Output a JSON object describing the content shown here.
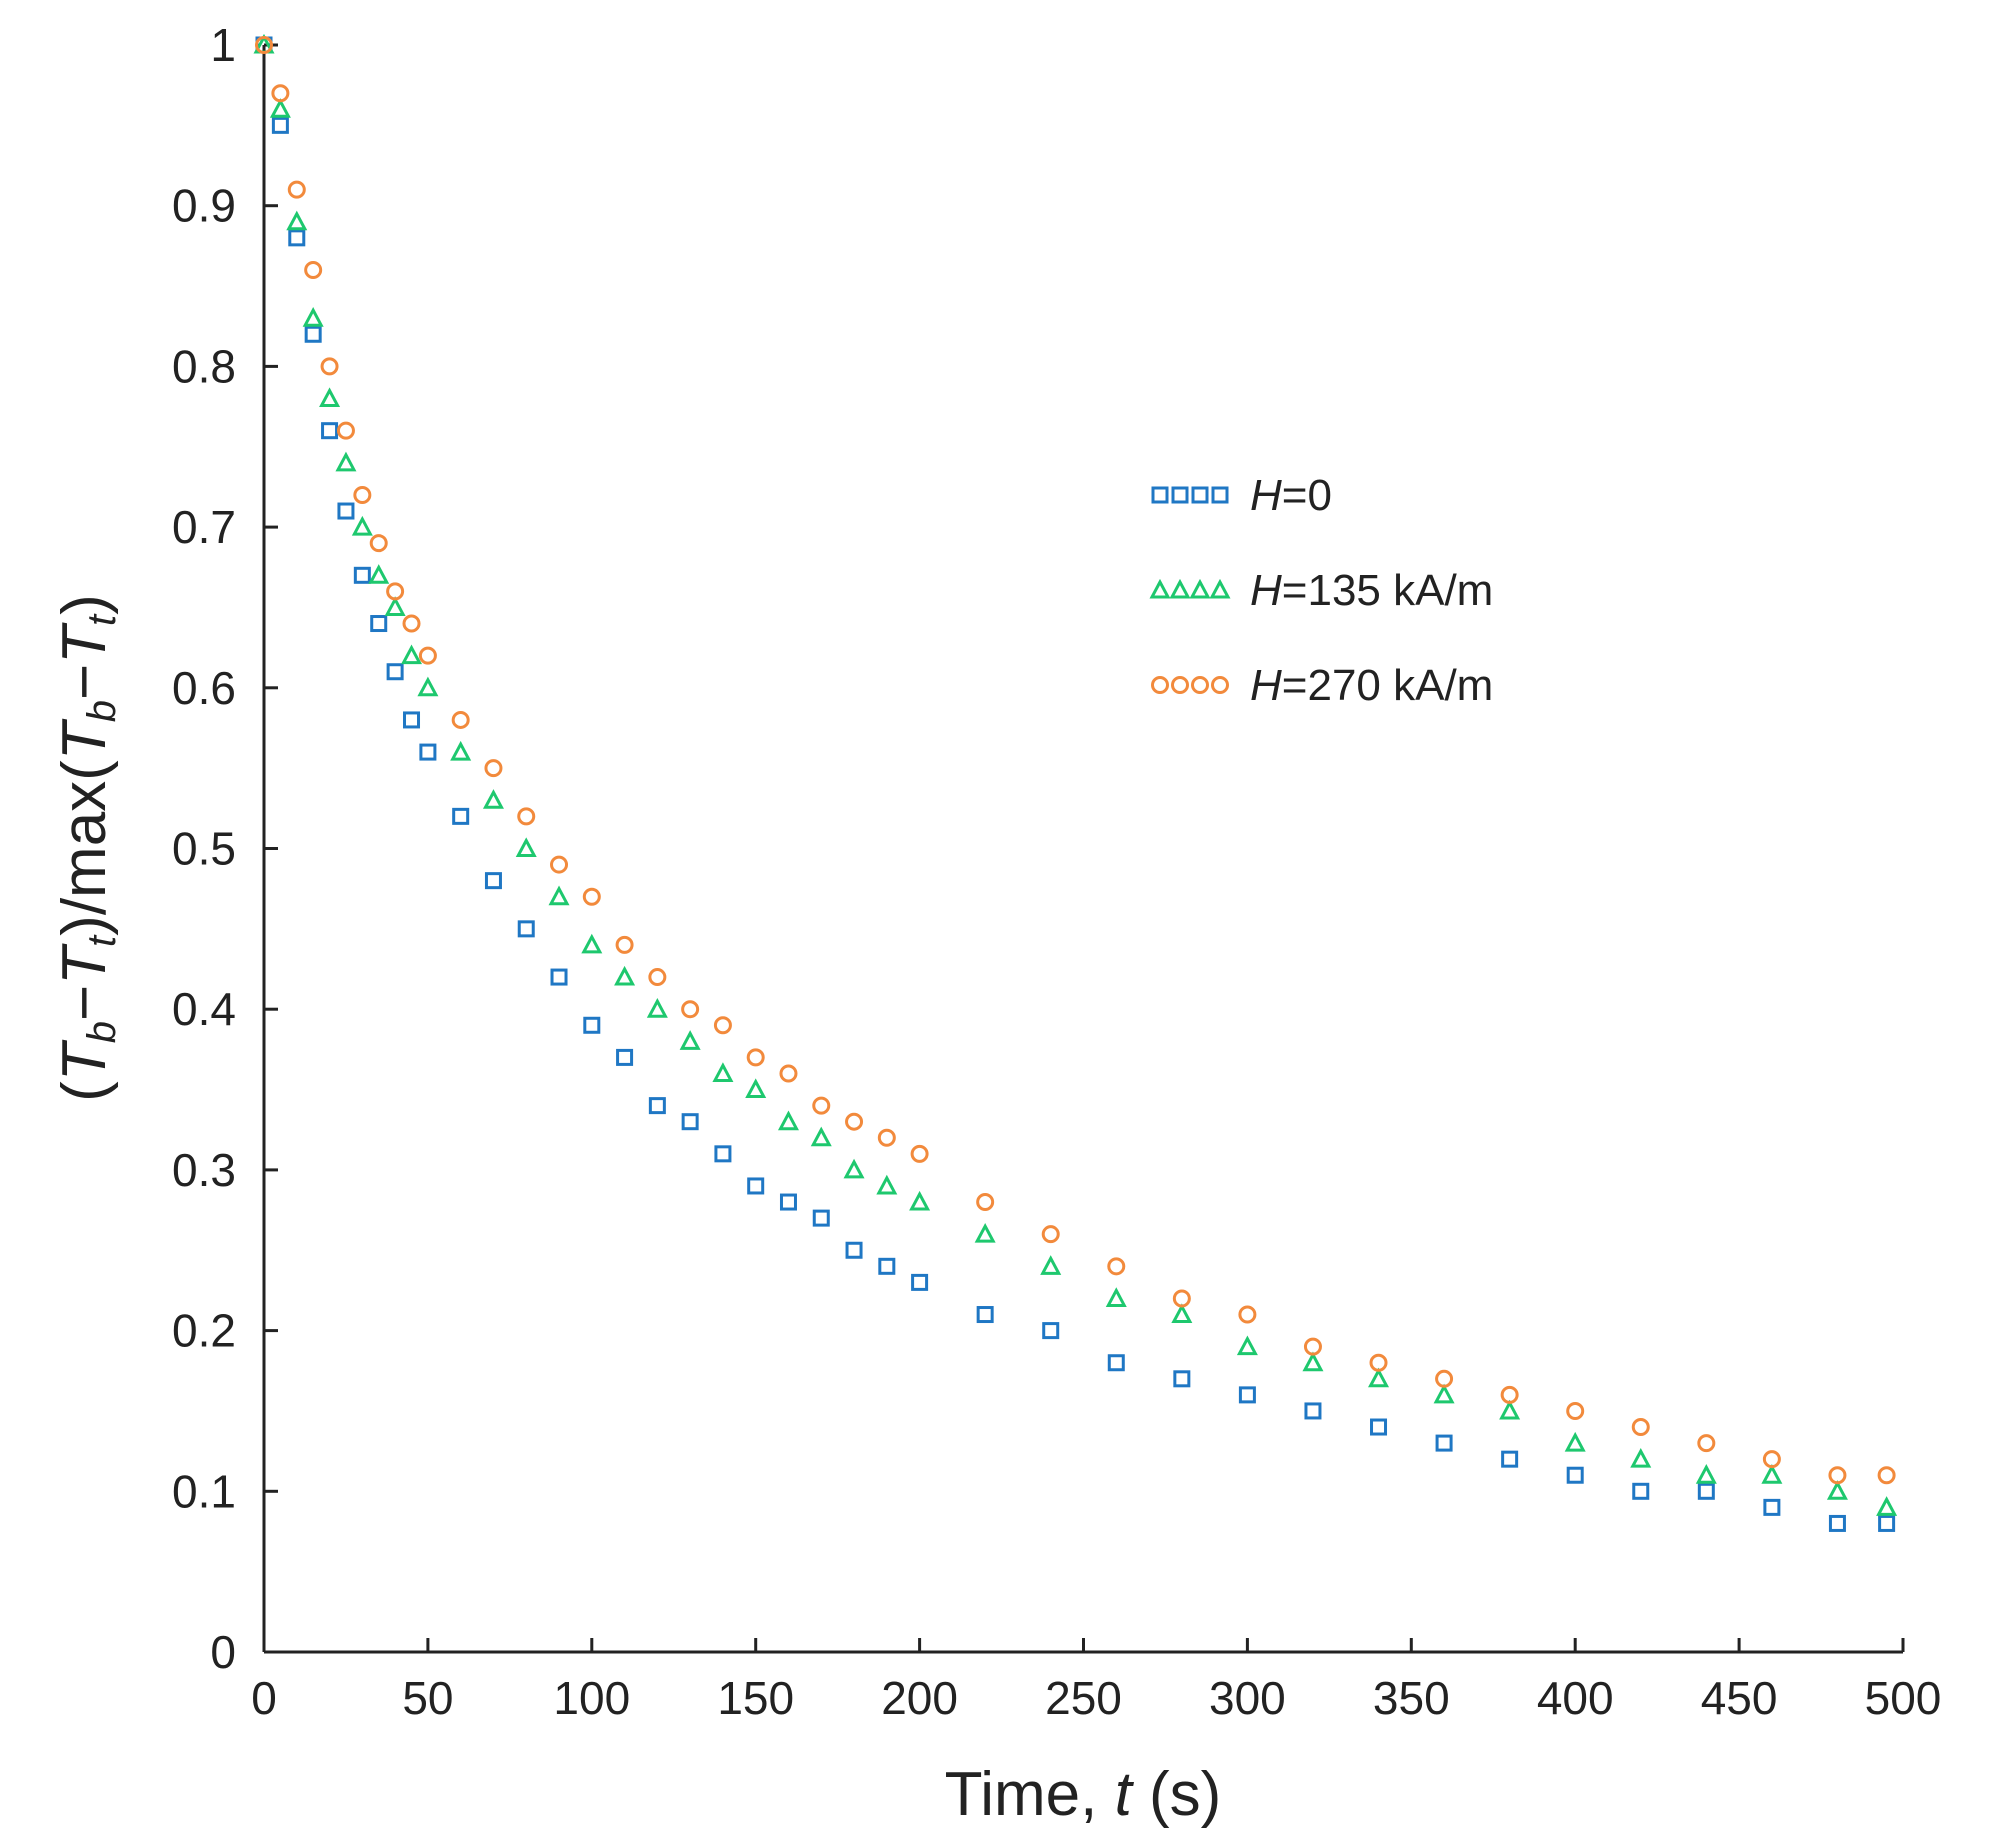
{
  "chart_data": {
    "type": "scatter",
    "title": "",
    "xlabel": {
      "prefix": "Time, ",
      "var": "t",
      "suffix": " (s)"
    },
    "ylabel": {
      "p1": "(",
      "T1": "T",
      "s1": "b",
      "m1": "−",
      "T2": "T",
      "s2": "t",
      "mid": ")/max(",
      "T3": "T",
      "s3": "b",
      "m2": "−",
      "T4": "T",
      "s4": "t",
      "end": ")"
    },
    "xlim": [
      0,
      500
    ],
    "ylim": [
      0,
      1
    ],
    "xticks": [
      0,
      50,
      100,
      150,
      200,
      250,
      300,
      350,
      400,
      450,
      500
    ],
    "yticks": [
      0,
      0.1,
      0.2,
      0.3,
      0.4,
      0.5,
      0.6,
      0.7,
      0.8,
      0.9,
      1
    ],
    "ytick_labels": [
      "0",
      "0.1",
      "0.2",
      "0.3",
      "0.4",
      "0.5",
      "0.6",
      "0.7",
      "0.8",
      "0.9",
      "1"
    ],
    "grid": false,
    "legend_position": "right-upper-middle",
    "series": [
      {
        "name_var": "H",
        "name_rest": "=0",
        "marker": "square",
        "color": "#1f77c4",
        "x": [
          0,
          5,
          10,
          15,
          20,
          25,
          30,
          35,
          40,
          45,
          50,
          60,
          70,
          80,
          90,
          100,
          110,
          120,
          130,
          140,
          150,
          160,
          170,
          180,
          190,
          200,
          220,
          240,
          260,
          280,
          300,
          320,
          340,
          360,
          380,
          400,
          420,
          440,
          460,
          480,
          495
        ],
        "y": [
          1.0,
          0.95,
          0.88,
          0.82,
          0.76,
          0.71,
          0.67,
          0.64,
          0.61,
          0.58,
          0.56,
          0.52,
          0.48,
          0.45,
          0.42,
          0.39,
          0.37,
          0.34,
          0.33,
          0.31,
          0.29,
          0.28,
          0.27,
          0.25,
          0.24,
          0.23,
          0.21,
          0.2,
          0.18,
          0.17,
          0.16,
          0.15,
          0.14,
          0.13,
          0.12,
          0.11,
          0.1,
          0.1,
          0.09,
          0.08,
          0.08
        ]
      },
      {
        "name_var": "H",
        "name_rest": "=135 kA/m",
        "marker": "triangle",
        "color": "#1ec86e",
        "x": [
          0,
          5,
          10,
          15,
          20,
          25,
          30,
          35,
          40,
          45,
          50,
          60,
          70,
          80,
          90,
          100,
          110,
          120,
          130,
          140,
          150,
          160,
          170,
          180,
          190,
          200,
          220,
          240,
          260,
          280,
          300,
          320,
          340,
          360,
          380,
          400,
          420,
          440,
          460,
          480,
          495
        ],
        "y": [
          1.0,
          0.96,
          0.89,
          0.83,
          0.78,
          0.74,
          0.7,
          0.67,
          0.65,
          0.62,
          0.6,
          0.56,
          0.53,
          0.5,
          0.47,
          0.44,
          0.42,
          0.4,
          0.38,
          0.36,
          0.35,
          0.33,
          0.32,
          0.3,
          0.29,
          0.28,
          0.26,
          0.24,
          0.22,
          0.21,
          0.19,
          0.18,
          0.17,
          0.16,
          0.15,
          0.13,
          0.12,
          0.11,
          0.11,
          0.1,
          0.09
        ]
      },
      {
        "name_var": "H",
        "name_rest": "=270 kA/m",
        "marker": "circle",
        "color": "#f28a3c",
        "x": [
          0,
          5,
          10,
          15,
          20,
          25,
          30,
          35,
          40,
          45,
          50,
          60,
          70,
          80,
          90,
          100,
          110,
          120,
          130,
          140,
          150,
          160,
          170,
          180,
          190,
          200,
          220,
          240,
          260,
          280,
          300,
          320,
          340,
          360,
          380,
          400,
          420,
          440,
          460,
          480,
          495
        ],
        "y": [
          1.0,
          0.97,
          0.91,
          0.86,
          0.8,
          0.76,
          0.72,
          0.69,
          0.66,
          0.64,
          0.62,
          0.58,
          0.55,
          0.52,
          0.49,
          0.47,
          0.44,
          0.42,
          0.4,
          0.39,
          0.37,
          0.36,
          0.34,
          0.33,
          0.32,
          0.31,
          0.28,
          0.26,
          0.24,
          0.22,
          0.21,
          0.19,
          0.18,
          0.17,
          0.16,
          0.15,
          0.14,
          0.13,
          0.12,
          0.11,
          0.11
        ]
      }
    ]
  }
}
